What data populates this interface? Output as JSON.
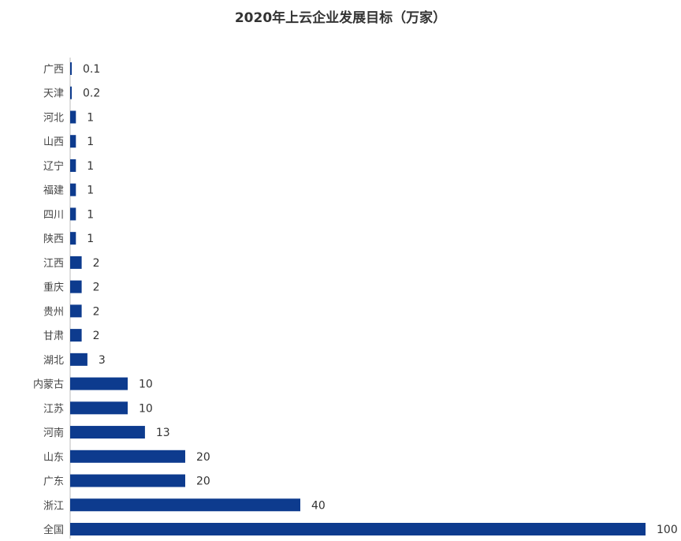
{
  "chart_data": {
    "type": "bar",
    "orientation": "horizontal",
    "title": "2020年上云企业发展目标（万家）",
    "categories": [
      "广西",
      "天津",
      "河北",
      "山西",
      "辽宁",
      "福建",
      "四川",
      "陕西",
      "江西",
      "重庆",
      "贵州",
      "甘肃",
      "湖北",
      "内蒙古",
      "江苏",
      "河南",
      "山东",
      "广东",
      "浙江",
      "全国"
    ],
    "values": [
      0.1,
      0.2,
      1,
      1,
      1,
      1,
      1,
      1,
      2,
      2,
      2,
      2,
      3,
      10,
      10,
      13,
      20,
      20,
      40,
      100
    ],
    "value_labels": [
      "0.1",
      "0.2",
      "1",
      "1",
      "1",
      "1",
      "1",
      "1",
      "2",
      "2",
      "2",
      "2",
      "3",
      "10",
      "10",
      "13",
      "20",
      "20",
      "40",
      "100"
    ],
    "xlim": [
      0,
      100
    ],
    "grid": false,
    "legend": "none",
    "bar_color": "#0d3b8e"
  }
}
